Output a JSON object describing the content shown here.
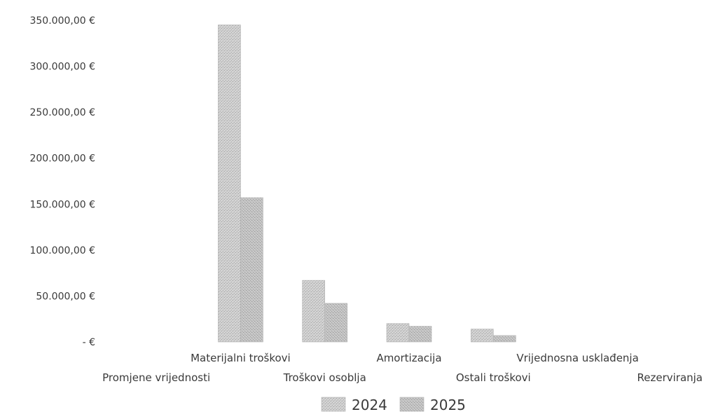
{
  "chart_data": {
    "type": "bar",
    "categories": [
      "Promjene vrijednosti",
      "Materijalni troškovi",
      "Troškovi osoblja",
      "Amortizacija",
      "Ostali troškovi",
      "Vrijednosna usklađenja",
      "Rezerviranja"
    ],
    "series": [
      {
        "name": "2024",
        "values": [
          0,
          345000,
          67000,
          20000,
          14000,
          0,
          0
        ],
        "color": "#c9c9c9"
      },
      {
        "name": "2025",
        "values": [
          0,
          157000,
          42000,
          17000,
          7000,
          0,
          0
        ],
        "color": "#bdbdbd"
      }
    ],
    "yticks": [
      {
        "value": 0,
        "label": "-   €"
      },
      {
        "value": 50000,
        "label": "50.000,00 €"
      },
      {
        "value": 100000,
        "label": "100.000,00 €"
      },
      {
        "value": 150000,
        "label": "150.000,00 €"
      },
      {
        "value": 200000,
        "label": "200.000,00 €"
      },
      {
        "value": 250000,
        "label": "250.000,00 €"
      },
      {
        "value": 300000,
        "label": "300.000,00 €"
      },
      {
        "value": 350000,
        "label": "350.000,00 €"
      }
    ],
    "ylim": [
      0,
      350000
    ],
    "grid": false,
    "legend_position": "bottom"
  }
}
